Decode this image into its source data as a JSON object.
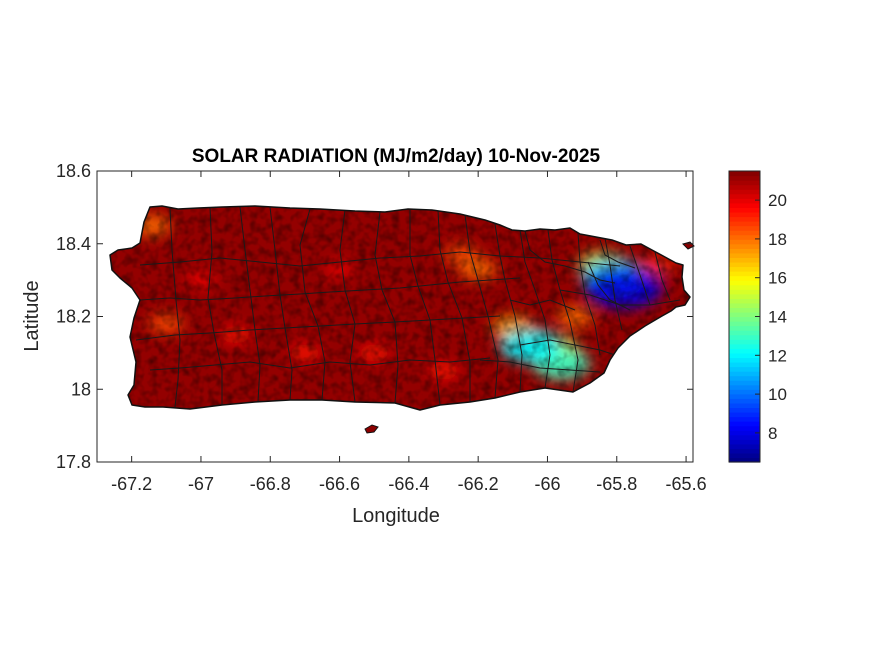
{
  "figure": {
    "title": "SOLAR RADIATION (MJ/m2/day) 10-Nov-2025",
    "xlabel": "Longitude",
    "ylabel": "Latitude",
    "xlim": [
      -67.3,
      -65.58
    ],
    "ylim": [
      17.8,
      18.6
    ],
    "x_ticks": [
      {
        "value": -67.2,
        "label": "-67.2"
      },
      {
        "value": -67.0,
        "label": "-67"
      },
      {
        "value": -66.8,
        "label": "-66.8"
      },
      {
        "value": -66.6,
        "label": "-66.6"
      },
      {
        "value": -66.4,
        "label": "-66.4"
      },
      {
        "value": -66.2,
        "label": "-66.2"
      },
      {
        "value": -66.0,
        "label": "-66"
      },
      {
        "value": -65.8,
        "label": "-65.8"
      },
      {
        "value": -65.6,
        "label": "-65.6"
      }
    ],
    "y_ticks": [
      {
        "value": 17.8,
        "label": "17.8"
      },
      {
        "value": 18.0,
        "label": "18"
      },
      {
        "value": 18.2,
        "label": "18.2"
      },
      {
        "value": 18.4,
        "label": "18.4"
      },
      {
        "value": 18.6,
        "label": "18.6"
      }
    ],
    "colorbar": {
      "colormap": "jet",
      "range": [
        6.5,
        21.5
      ],
      "ticks": [
        {
          "value": 8,
          "label": "8"
        },
        {
          "value": 10,
          "label": "10"
        },
        {
          "value": 12,
          "label": "12"
        },
        {
          "value": 14,
          "label": "14"
        },
        {
          "value": 16,
          "label": "16"
        },
        {
          "value": 18,
          "label": "18"
        },
        {
          "value": 20,
          "label": "20"
        }
      ]
    },
    "field": {
      "background_value": 21.2,
      "features": [
        {
          "lon": -66.05,
          "lat": 18.12,
          "value": 12.0
        },
        {
          "lon": -65.96,
          "lat": 18.07,
          "value": 13.0
        },
        {
          "lon": -65.98,
          "lat": 18.11,
          "value": 15.0
        },
        {
          "lon": -65.78,
          "lat": 18.28,
          "value": 8.0
        },
        {
          "lon": -65.81,
          "lat": 18.31,
          "value": 11.5
        },
        {
          "lon": -65.84,
          "lat": 18.34,
          "value": 15.0
        },
        {
          "lon": -66.1,
          "lat": 18.17,
          "value": 17.0
        },
        {
          "lon": -66.2,
          "lat": 18.33,
          "value": 18.0
        },
        {
          "lon": -66.25,
          "lat": 18.37,
          "value": 18.5
        },
        {
          "lon": -67.14,
          "lat": 18.45,
          "value": 18.0
        },
        {
          "lon": -67.1,
          "lat": 18.18,
          "value": 18.5
        },
        {
          "lon": -66.9,
          "lat": 18.15,
          "value": 19.5
        },
        {
          "lon": -66.7,
          "lat": 18.1,
          "value": 19.5
        },
        {
          "lon": -66.5,
          "lat": 18.1,
          "value": 19.5
        },
        {
          "lon": -66.3,
          "lat": 18.05,
          "value": 19.5
        },
        {
          "lon": -67.0,
          "lat": 18.3,
          "value": 19.8
        },
        {
          "lon": -66.6,
          "lat": 18.33,
          "value": 20.0
        },
        {
          "lon": -65.92,
          "lat": 18.2,
          "value": 18.0
        },
        {
          "lon": -65.68,
          "lat": 18.34,
          "value": 19.0
        }
      ]
    }
  }
}
